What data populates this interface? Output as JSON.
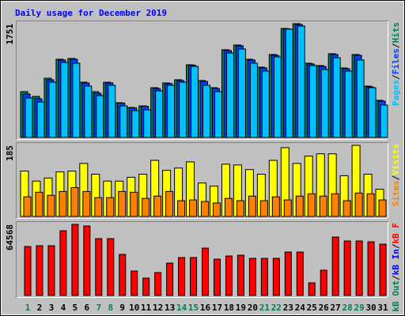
{
  "title": "Daily usage for December 2019",
  "separator": "/",
  "chart_data": [
    {
      "type": "bar",
      "ylim": [
        0,
        1751
      ],
      "yticks": [
        1751
      ],
      "series": [
        {
          "name": "Hits",
          "color": "#00805c",
          "values": [
            705,
            632,
            912,
            1204,
            1216,
            851,
            705,
            850,
            535,
            462,
            486,
            766,
            839,
            888,
            1119,
            876,
            766,
            1350,
            1423,
            1204,
            1082,
            1277,
            1678,
            1751,
            1143,
            1107,
            1289,
            1070,
            1277,
            790,
            572
          ]
        },
        {
          "name": "Files",
          "color": "#0040ff",
          "values": [
            669,
            596,
            888,
            1192,
            1204,
            839,
            681,
            839,
            530,
            455,
            480,
            754,
            830,
            876,
            1110,
            863,
            754,
            1338,
            1411,
            1192,
            1070,
            1265,
            1670,
            1740,
            1131,
            1094,
            1277,
            1058,
            1265,
            778,
            559
          ]
        },
        {
          "name": "Pages",
          "color": "#00c0ff",
          "values": [
            608,
            547,
            851,
            1155,
            1143,
            790,
            644,
            803,
            486,
            413,
            426,
            717,
            803,
            851,
            1094,
            803,
            705,
            1301,
            1362,
            1143,
            1021,
            1240,
            1666,
            1715,
            1107,
            1046,
            1228,
            1021,
            1192,
            766,
            499
          ]
        }
      ]
    },
    {
      "type": "bar",
      "ylim": [
        0,
        185
      ],
      "yticks": [
        185
      ],
      "series": [
        {
          "name": "Visits",
          "color": "#ffff00",
          "values": [
            118,
            92,
            100,
            116,
            118,
            138,
            110,
            92,
            92,
            102,
            110,
            146,
            120,
            126,
            142,
            87,
            79,
            136,
            134,
            122,
            110,
            146,
            179,
            138,
            157,
            163,
            163,
            106,
            185,
            110,
            71
          ]
        },
        {
          "name": "Sites",
          "color": "#ff8000",
          "values": [
            51,
            63,
            55,
            65,
            75,
            65,
            49,
            49,
            65,
            63,
            47,
            53,
            65,
            41,
            43,
            39,
            35,
            47,
            41,
            53,
            41,
            51,
            43,
            53,
            59,
            53,
            59,
            41,
            61,
            59,
            43
          ]
        }
      ]
    },
    {
      "type": "bar",
      "ylim": [
        0,
        64568
      ],
      "yticks": [
        64568
      ],
      "categories": [
        "1",
        "2",
        "3",
        "4",
        "5",
        "6",
        "7",
        "8",
        "9",
        "10",
        "11",
        "12",
        "13",
        "14",
        "15",
        "16",
        "17",
        "18",
        "19",
        "20",
        "21",
        "22",
        "23",
        "24",
        "25",
        "26",
        "27",
        "28",
        "29",
        "30",
        "31"
      ],
      "category_colors": [
        "#00805c",
        "#000000",
        "#000000",
        "#000000",
        "#000000",
        "#000000",
        "#00805c",
        "#00805c",
        "#000000",
        "#000000",
        "#000000",
        "#000000",
        "#000000",
        "#00805c",
        "#00805c",
        "#000000",
        "#000000",
        "#000000",
        "#000000",
        "#000000",
        "#00805c",
        "#00805c",
        "#000000",
        "#000000",
        "#000000",
        "#000000",
        "#000000",
        "#00805c",
        "#00805c",
        "#000000",
        "#000000"
      ],
      "series": [
        {
          "name": "kB F",
          "color": "#ff0000",
          "values": [
            44454,
            45171,
            45171,
            58794,
            64568,
            63096,
            51624,
            51624,
            37284,
            22227,
            15774,
            20793,
            29397,
            34416,
            34416,
            43020,
            32982,
            35850,
            36567,
            33699,
            33699,
            33699,
            39435,
            39435,
            11472,
            22944,
            53058,
            49473,
            49473,
            48756,
            46605
          ]
        }
      ],
      "legend_extra": [
        {
          "name": "kB In",
          "color": "#0000ff"
        },
        {
          "name": "kB Out",
          "color": "#00805c"
        }
      ]
    }
  ]
}
